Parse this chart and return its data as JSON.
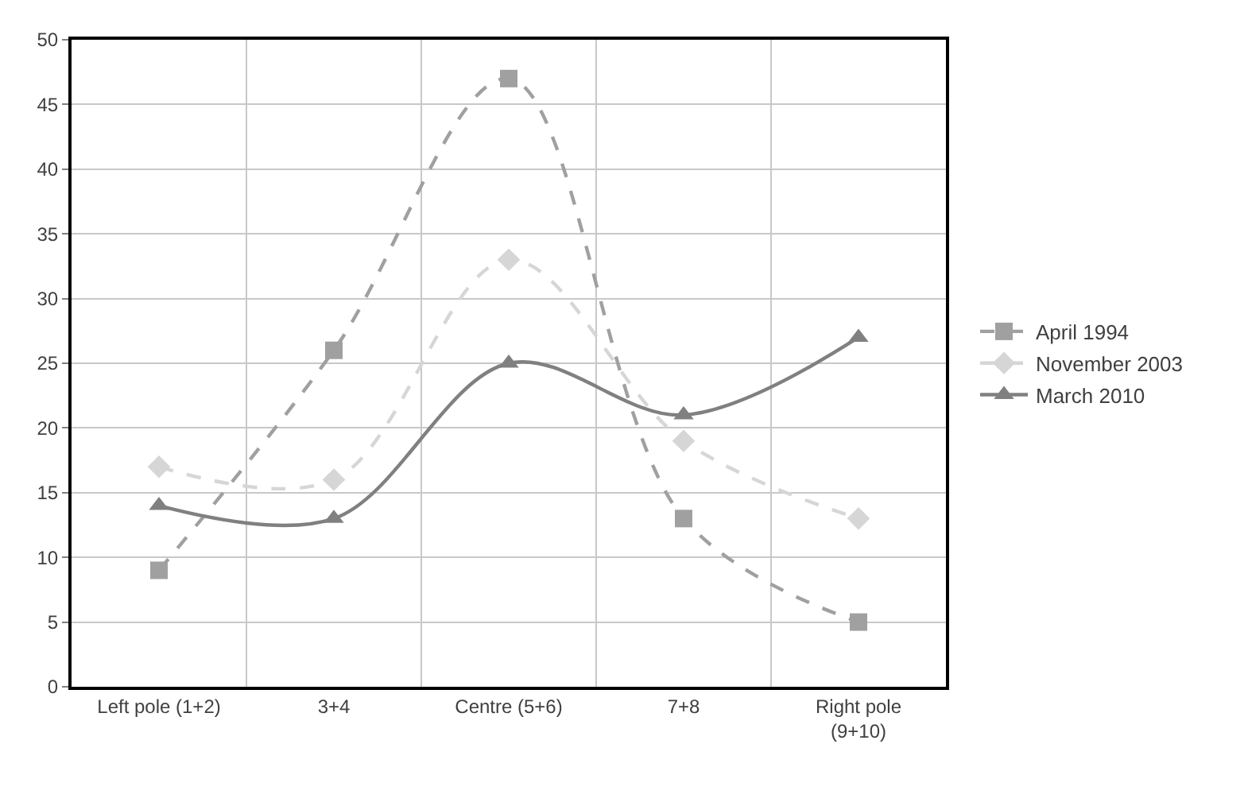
{
  "chart_data": {
    "type": "line",
    "categories": [
      "Left pole (1+2)",
      "3+4",
      "Centre (5+6)",
      "7+8",
      "Right pole (9+10)"
    ],
    "series": [
      {
        "name": "April 1994",
        "color": "#a0a0a0",
        "values": [
          9,
          26,
          47,
          13,
          5
        ],
        "marker": "square",
        "line_style": "dashed"
      },
      {
        "name": "November 2003",
        "color": "#d6d6d6",
        "values": [
          17,
          16,
          33,
          19,
          13
        ],
        "marker": "diamond",
        "line_style": "dashed"
      },
      {
        "name": "March 2010",
        "color": "#808080",
        "values": [
          14,
          13,
          25,
          21,
          27
        ],
        "marker": "triangle",
        "line_style": "solid"
      }
    ],
    "ylim": [
      0,
      50
    ],
    "yticks": [
      0,
      5,
      10,
      15,
      20,
      25,
      30,
      35,
      40,
      45,
      50
    ],
    "grid": true,
    "legend": "right"
  }
}
